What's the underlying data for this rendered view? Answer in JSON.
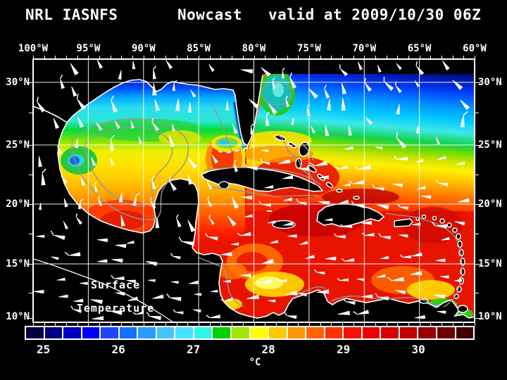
{
  "title": {
    "left": "NRL IASNFS",
    "center": "Nowcast",
    "right": "valid at 2009/10/30 06Z"
  },
  "axes": {
    "top": [
      "100°W",
      "95°W",
      "90°W",
      "85°W",
      "80°W",
      "75°W",
      "70°W",
      "65°W",
      "60°W"
    ],
    "left": [
      "30°N",
      "25°N",
      "20°N",
      "15°N",
      "10°N"
    ],
    "right": [
      "30°N",
      "25°N",
      "20°N",
      "15°N",
      "10°N"
    ]
  },
  "overlay": {
    "line1": "Surface",
    "line2": "Temperature"
  },
  "colorbar": {
    "labels": [
      "25",
      "26",
      "27",
      "28",
      "29",
      "30"
    ],
    "unit": "°C",
    "range_min": 24.75,
    "range_max": 30.75,
    "step_per_segment": 0.25,
    "segment_colors": [
      "#000041",
      "#000082",
      "#0000be",
      "#0000fa",
      "#1e46ff",
      "#146eff",
      "#289cff",
      "#46c3ff",
      "#46e1ff",
      "#2df5eb",
      "#00d200",
      "#a0e600",
      "#ffff00",
      "#ffc800",
      "#ff9600",
      "#ff6400",
      "#ff3200",
      "#ff0f00",
      "#eb0000",
      "#d70000",
      "#be0000",
      "#9b0000",
      "#6e0000",
      "#410000"
    ]
  },
  "colors": {
    "background": "#000000",
    "text": "#ffffff",
    "grid": "#ffffff",
    "coastline": "#ffffff",
    "bathymetry_contour": "#969696",
    "land": "#000000",
    "wind_barb": "#ffffff"
  }
}
